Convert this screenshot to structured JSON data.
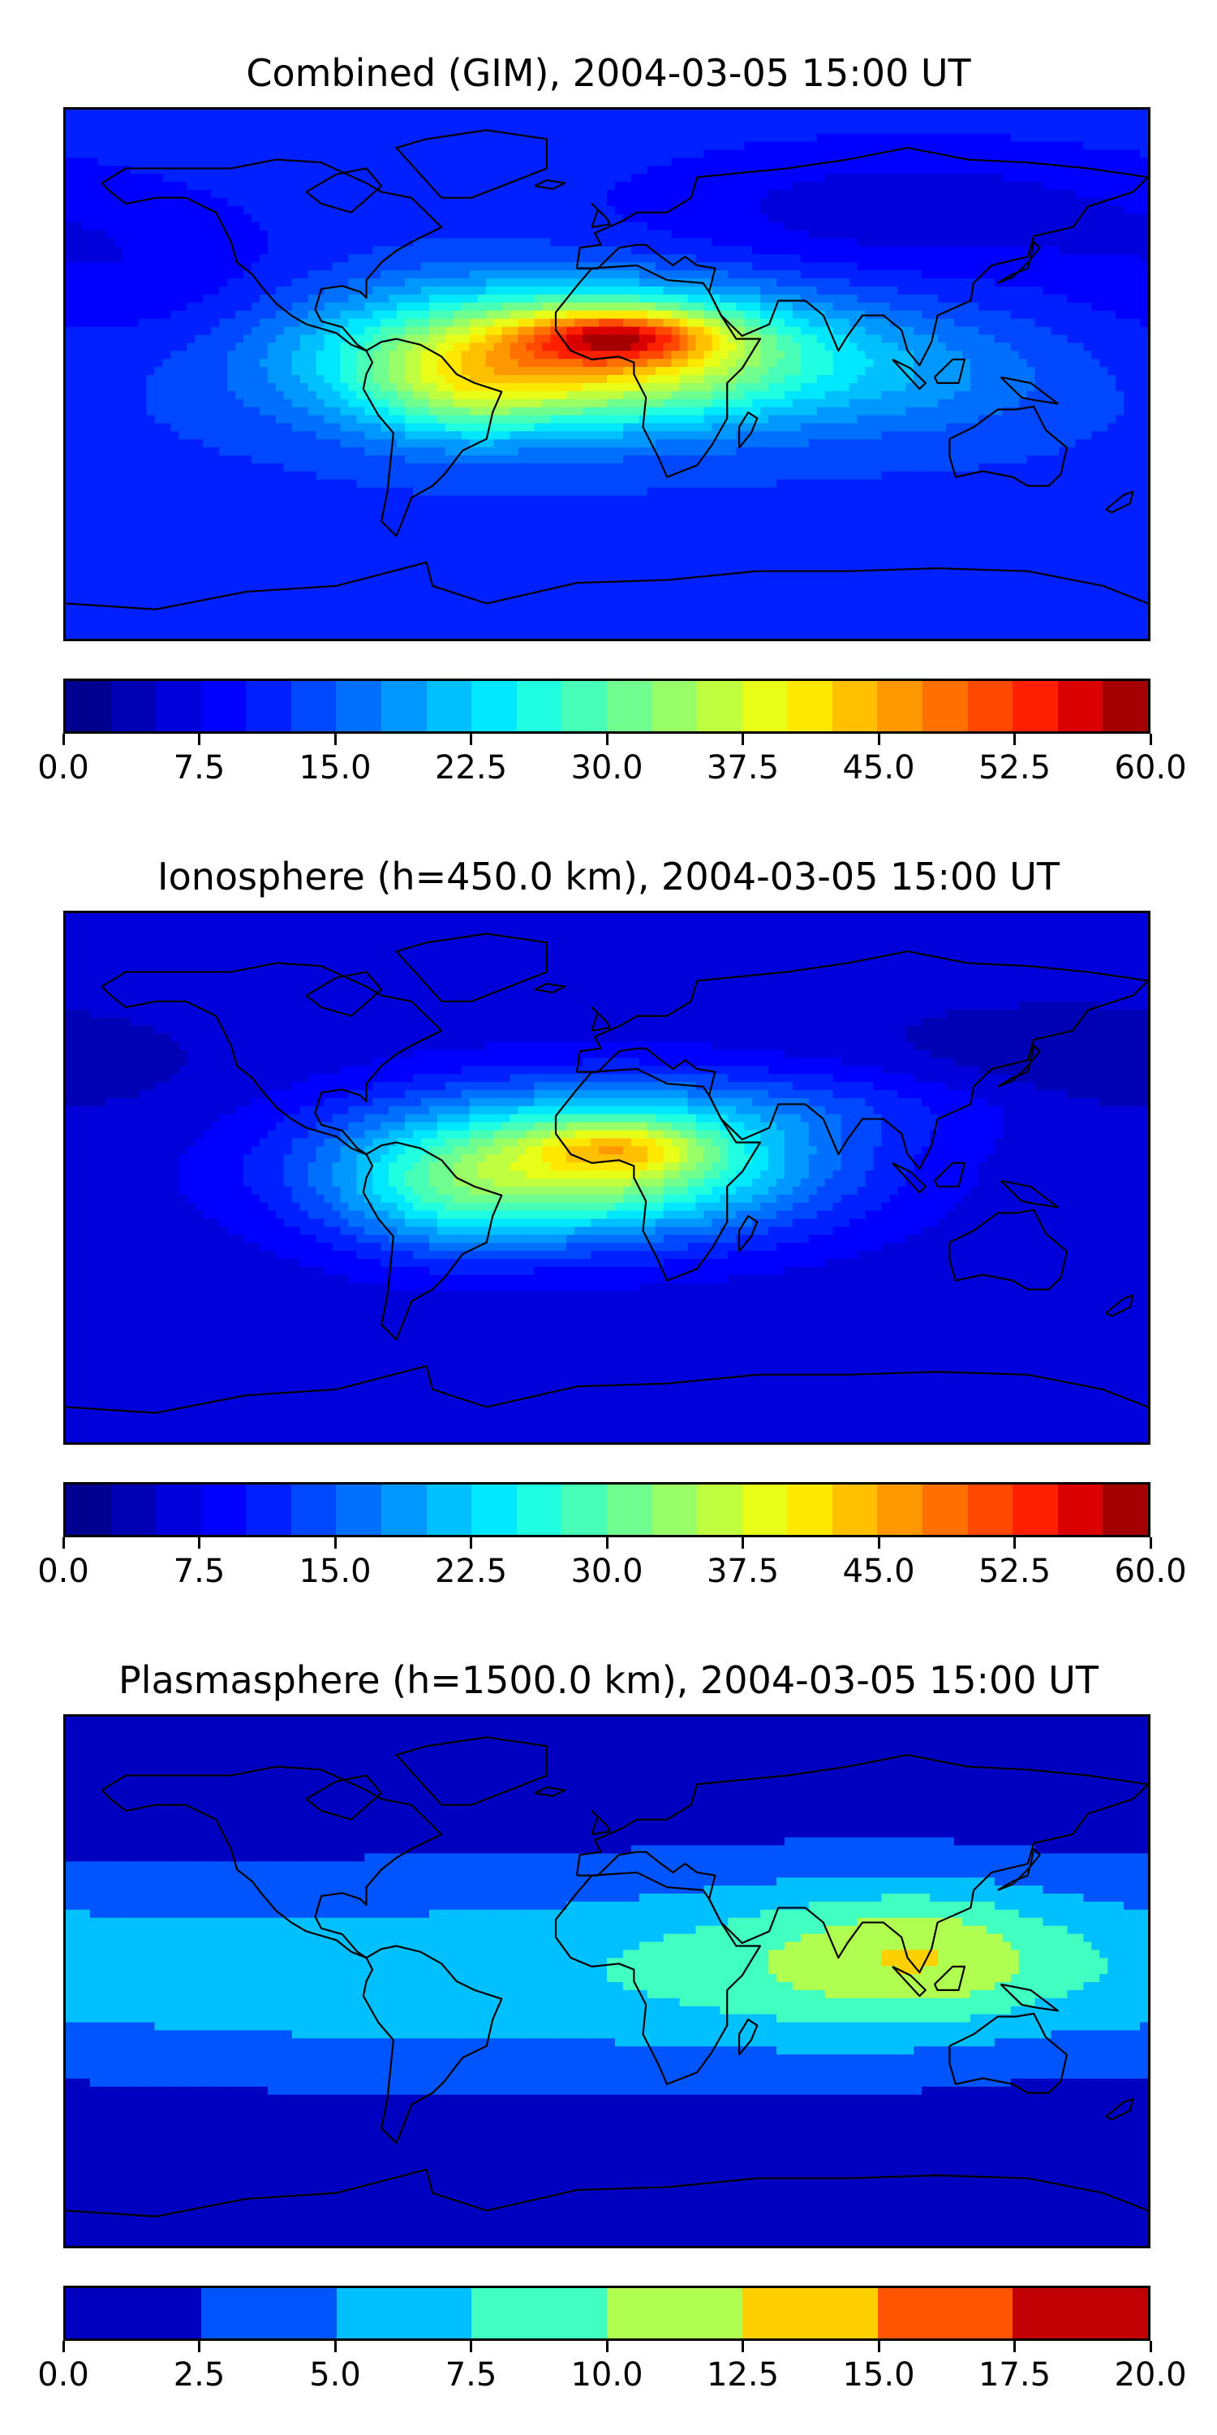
{
  "panels": [
    {
      "title": "Combined (GIM), 2004-03-05 15:00 UT",
      "colorbar": {
        "min": 0,
        "max": 60,
        "n_levels": 24,
        "tick_labels": [
          "0.0",
          "7.5",
          "15.0",
          "22.5",
          "30.0",
          "37.5",
          "45.0",
          "52.5",
          "60.0"
        ]
      },
      "colors": [
        "#00008f",
        "#0000b5",
        "#0000db",
        "#0000ff",
        "#0020ff",
        "#0048ff",
        "#0070ff",
        "#0098ff",
        "#00c0ff",
        "#00e8ff",
        "#20ffdf",
        "#48ffb7",
        "#70ff8f",
        "#98ff67",
        "#c0ff3f",
        "#e8ff17",
        "#ffe800",
        "#ffc000",
        "#ff9800",
        "#ff7000",
        "#ff4800",
        "#ff2000",
        "#db0000",
        "#a40000"
      ],
      "field": {
        "base": 0.2,
        "blobs": [
          {
            "lon": -10,
            "lat": 6,
            "slon": 58,
            "slat": 16,
            "amp": 0.55
          },
          {
            "lon": 5,
            "lat": 13,
            "slon": 22,
            "slat": 6,
            "amp": 0.3
          },
          {
            "lon": -50,
            "lat": -8,
            "slon": 22,
            "slat": 12,
            "amp": 0.12
          },
          {
            "lon": 110,
            "lat": -2,
            "slon": 35,
            "slat": 14,
            "amp": 0.06
          },
          {
            "lon": 100,
            "lat": 55,
            "slon": 70,
            "slat": 18,
            "amp": -0.1
          },
          {
            "lon": -150,
            "lat": 30,
            "slon": 40,
            "slat": 20,
            "amp": -0.06
          }
        ]
      }
    },
    {
      "title": "Ionosphere  (h=450.0 km), 2004-03-05 15:00 UT",
      "colorbar": {
        "min": 0,
        "max": 60,
        "n_levels": 24,
        "tick_labels": [
          "0.0",
          "7.5",
          "15.0",
          "22.5",
          "30.0",
          "37.5",
          "45.0",
          "52.5",
          "60.0"
        ]
      },
      "colors": [
        "#00008f",
        "#0000b5",
        "#0000db",
        "#0000ff",
        "#0020ff",
        "#0048ff",
        "#0070ff",
        "#0098ff",
        "#00c0ff",
        "#00e8ff",
        "#20ffdf",
        "#48ffb7",
        "#70ff8f",
        "#98ff67",
        "#c0ff3f",
        "#e8ff17",
        "#ffe800",
        "#ffc000",
        "#ff9800",
        "#ff7000",
        "#ff4800",
        "#ff2000",
        "#db0000",
        "#a40000"
      ],
      "field": {
        "base": 0.1,
        "blobs": [
          {
            "lon": -10,
            "lat": 4,
            "slon": 55,
            "slat": 17,
            "amp": 0.5
          },
          {
            "lon": 5,
            "lat": 10,
            "slon": 20,
            "slat": 6,
            "amp": 0.18
          },
          {
            "lon": -55,
            "lat": -10,
            "slon": 25,
            "slat": 14,
            "amp": 0.1
          },
          {
            "lon": 80,
            "lat": 25,
            "slon": 60,
            "slat": 10,
            "amp": 0.08
          },
          {
            "lon": 150,
            "lat": 35,
            "slon": 50,
            "slat": 15,
            "amp": -0.06
          }
        ]
      }
    },
    {
      "title": "Plasmasphere (h=1500.0 km), 2004-03-05 15:00 UT",
      "colorbar": {
        "min": 0,
        "max": 20,
        "n_levels": 8,
        "tick_labels": [
          "0.0",
          "2.5",
          "5.0",
          "7.5",
          "10.0",
          "12.5",
          "15.0",
          "17.5",
          "20.0"
        ]
      },
      "colors": [
        "#0000c0",
        "#0055ff",
        "#00c0ff",
        "#40ffc0",
        "#b0ff50",
        "#ffd000",
        "#ff5500",
        "#c00000"
      ],
      "field": {
        "base": 0.05,
        "blobs": [
          {
            "lon": -40,
            "lat": 2,
            "slon": 150,
            "slat": 25,
            "amp": 0.28
          },
          {
            "lon": 100,
            "lat": 8,
            "slon": 55,
            "slat": 20,
            "amp": 0.3
          },
          {
            "lon": 110,
            "lat": 10,
            "slon": 28,
            "slat": 14,
            "amp": 0.12
          },
          {
            "lon": -120,
            "lat": 0,
            "slon": 30,
            "slat": 15,
            "amp": 0.03
          }
        ]
      }
    }
  ],
  "coastlines": [
    [
      [
        -168,
        65
      ],
      [
        -160,
        70
      ],
      [
        -140,
        70
      ],
      [
        -125,
        70
      ],
      [
        -110,
        73
      ],
      [
        -95,
        72
      ],
      [
        -80,
        65
      ],
      [
        -75,
        62
      ],
      [
        -65,
        60
      ],
      [
        -60,
        55
      ],
      [
        -55,
        50
      ],
      [
        -65,
        45
      ],
      [
        -70,
        42
      ],
      [
        -75,
        38
      ],
      [
        -80,
        32
      ],
      [
        -80,
        26
      ],
      [
        -82,
        28
      ],
      [
        -88,
        30
      ],
      [
        -95,
        29
      ],
      [
        -97,
        22
      ],
      [
        -95,
        18
      ],
      [
        -88,
        16
      ],
      [
        -83,
        10
      ],
      [
        -80,
        8
      ],
      [
        -85,
        10
      ],
      [
        -90,
        14
      ],
      [
        -100,
        17
      ],
      [
        -105,
        20
      ],
      [
        -110,
        24
      ],
      [
        -115,
        30
      ],
      [
        -118,
        34
      ],
      [
        -123,
        38
      ],
      [
        -125,
        45
      ],
      [
        -130,
        55
      ],
      [
        -140,
        60
      ],
      [
        -150,
        60
      ],
      [
        -160,
        58
      ],
      [
        -165,
        62
      ],
      [
        -168,
        65
      ]
    ],
    [
      [
        -80,
        8
      ],
      [
        -75,
        11
      ],
      [
        -70,
        12
      ],
      [
        -62,
        10
      ],
      [
        -55,
        6
      ],
      [
        -50,
        0
      ],
      [
        -44,
        -3
      ],
      [
        -35,
        -6
      ],
      [
        -38,
        -13
      ],
      [
        -40,
        -22
      ],
      [
        -48,
        -26
      ],
      [
        -54,
        -34
      ],
      [
        -58,
        -38
      ],
      [
        -65,
        -42
      ],
      [
        -68,
        -50
      ],
      [
        -70,
        -55
      ],
      [
        -75,
        -50
      ],
      [
        -73,
        -40
      ],
      [
        -72,
        -30
      ],
      [
        -71,
        -20
      ],
      [
        -76,
        -14
      ],
      [
        -81,
        -5
      ],
      [
        -80,
        0
      ],
      [
        -78,
        4
      ],
      [
        -80,
        8
      ]
    ],
    [
      [
        -17,
        15
      ],
      [
        -17,
        21
      ],
      [
        -10,
        30
      ],
      [
        -5,
        36
      ],
      [
        10,
        37
      ],
      [
        20,
        32
      ],
      [
        32,
        31
      ],
      [
        34,
        28
      ],
      [
        38,
        20
      ],
      [
        43,
        12
      ],
      [
        51,
        12
      ],
      [
        45,
        2
      ],
      [
        40,
        -3
      ],
      [
        40,
        -15
      ],
      [
        35,
        -24
      ],
      [
        30,
        -31
      ],
      [
        20,
        -35
      ],
      [
        17,
        -28
      ],
      [
        12,
        -18
      ],
      [
        13,
        -8
      ],
      [
        9,
        0
      ],
      [
        9,
        4
      ],
      [
        4,
        6
      ],
      [
        -5,
        5
      ],
      [
        -12,
        8
      ],
      [
        -17,
        15
      ]
    ],
    [
      [
        -10,
        36
      ],
      [
        -9,
        43
      ],
      [
        -2,
        44
      ],
      [
        -4,
        48
      ],
      [
        5,
        52
      ],
      [
        10,
        55
      ],
      [
        20,
        55
      ],
      [
        28,
        60
      ],
      [
        30,
        67
      ],
      [
        40,
        68
      ],
      [
        60,
        70
      ],
      [
        80,
        73
      ],
      [
        100,
        77
      ],
      [
        120,
        73
      ],
      [
        140,
        72
      ],
      [
        160,
        70
      ],
      [
        180,
        67
      ],
      [
        175,
        62
      ],
      [
        160,
        57
      ],
      [
        155,
        50
      ],
      [
        142,
        47
      ],
      [
        140,
        40
      ],
      [
        128,
        37
      ],
      [
        122,
        31
      ],
      [
        121,
        25
      ],
      [
        110,
        20
      ],
      [
        108,
        11
      ],
      [
        104,
        3
      ],
      [
        100,
        8
      ],
      [
        98,
        15
      ],
      [
        92,
        20
      ],
      [
        85,
        20
      ],
      [
        80,
        13
      ],
      [
        77,
        8
      ],
      [
        72,
        20
      ],
      [
        66,
        25
      ],
      [
        57,
        25
      ],
      [
        54,
        17
      ],
      [
        45,
        13
      ],
      [
        43,
        15
      ],
      [
        38,
        20
      ],
      [
        34,
        28
      ],
      [
        36,
        36
      ],
      [
        30,
        37
      ],
      [
        26,
        40
      ],
      [
        22,
        37
      ],
      [
        18,
        40
      ],
      [
        13,
        44
      ],
      [
        10,
        44
      ],
      [
        4,
        43
      ],
      [
        -3,
        36
      ],
      [
        -10,
        36
      ]
    ],
    [
      [
        114,
        -22
      ],
      [
        122,
        -18
      ],
      [
        130,
        -12
      ],
      [
        136,
        -12
      ],
      [
        142,
        -11
      ],
      [
        146,
        -19
      ],
      [
        153,
        -25
      ],
      [
        151,
        -34
      ],
      [
        147,
        -38
      ],
      [
        140,
        -38
      ],
      [
        135,
        -35
      ],
      [
        125,
        -33
      ],
      [
        116,
        -35
      ],
      [
        114,
        -28
      ],
      [
        114,
        -22
      ]
    ],
    [
      [
        95,
        5
      ],
      [
        104,
        -5
      ],
      [
        106,
        -3
      ],
      [
        101,
        2
      ],
      [
        95,
        5
      ]
    ],
    [
      [
        109,
        -1
      ],
      [
        115,
        5
      ],
      [
        119,
        5
      ],
      [
        117,
        -3
      ],
      [
        110,
        -3
      ],
      [
        109,
        -1
      ]
    ],
    [
      [
        131,
        -1
      ],
      [
        141,
        -3
      ],
      [
        150,
        -10
      ],
      [
        143,
        -9
      ],
      [
        138,
        -8
      ],
      [
        131,
        -1
      ]
    ],
    [
      [
        130,
        31
      ],
      [
        135,
        34
      ],
      [
        140,
        36
      ],
      [
        141,
        40
      ],
      [
        142,
        45
      ],
      [
        144,
        43
      ],
      [
        140,
        38
      ],
      [
        135,
        33
      ],
      [
        130,
        31
      ]
    ],
    [
      [
        -5,
        50
      ],
      [
        -3,
        56
      ],
      [
        -5,
        58
      ],
      [
        0,
        53
      ],
      [
        1,
        51
      ],
      [
        -5,
        50
      ]
    ],
    [
      [
        -24,
        64
      ],
      [
        -20,
        66
      ],
      [
        -14,
        65
      ],
      [
        -18,
        63
      ],
      [
        -24,
        64
      ]
    ],
    [
      [
        -55,
        60
      ],
      [
        -45,
        60
      ],
      [
        -20,
        70
      ],
      [
        -20,
        80
      ],
      [
        -40,
        83
      ],
      [
        -60,
        80
      ],
      [
        -70,
        77
      ],
      [
        -55,
        60
      ]
    ],
    [
      [
        44,
        -25
      ],
      [
        48,
        -20
      ],
      [
        50,
        -15
      ],
      [
        47,
        -13
      ],
      [
        44,
        -18
      ],
      [
        44,
        -25
      ]
    ],
    [
      [
        -180,
        -78
      ],
      [
        -150,
        -80
      ],
      [
        -120,
        -74
      ],
      [
        -90,
        -72
      ],
      [
        -60,
        -64
      ],
      [
        -58,
        -72
      ],
      [
        -40,
        -78
      ],
      [
        -10,
        -71
      ],
      [
        20,
        -70
      ],
      [
        50,
        -67
      ],
      [
        80,
        -67
      ],
      [
        110,
        -66
      ],
      [
        140,
        -67
      ],
      [
        165,
        -72
      ],
      [
        180,
        -78
      ]
    ],
    [
      [
        -100,
        62
      ],
      [
        -90,
        68
      ],
      [
        -80,
        70
      ],
      [
        -75,
        64
      ],
      [
        -85,
        55
      ],
      [
        -95,
        58
      ],
      [
        -100,
        62
      ]
    ],
    [
      [
        166,
        -46
      ],
      [
        172,
        -41
      ],
      [
        175,
        -40
      ],
      [
        174,
        -44
      ],
      [
        168,
        -47
      ],
      [
        166,
        -46
      ]
    ]
  ]
}
